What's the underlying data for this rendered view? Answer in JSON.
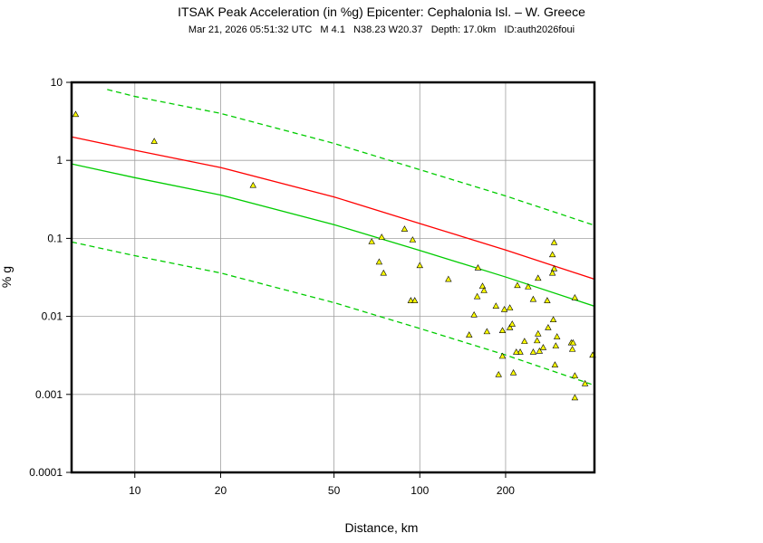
{
  "chart_data": {
    "type": "scatter",
    "title": "ITSAK Peak Acceleration (in %g) Epicenter: Cephalonia Isl. – W. Greece",
    "subtitle": "Mar 21, 2026 05:51:32 UTC   M 4.1   N38.23 W20.37   Depth: 17.0km   ID:auth2026foui",
    "x_label": "Distance, km",
    "y_label": "% g",
    "xscale": "log",
    "yscale": "log",
    "grid": true,
    "xlim": [
      6,
      410
    ],
    "ylim": [
      0.0001,
      10
    ],
    "xticks": [
      10,
      20,
      50,
      100,
      200
    ],
    "yticks": [
      0.0001,
      0.001,
      0.01,
      0.1,
      1,
      10
    ],
    "marker_color": "#ffff00",
    "x": [
      6.2,
      11.7,
      26,
      67.8,
      73.5,
      72,
      74.6,
      88.4,
      94.4,
      100,
      126,
      93,
      96,
      160,
      166,
      168,
      159,
      155,
      149,
      172,
      185,
      198,
      207,
      207,
      211,
      195,
      220,
      240,
      250,
      260,
      296,
      292,
      296,
      292,
      280,
      294,
      282,
      260,
      258,
      271,
      263,
      250,
      233,
      225,
      218,
      303,
      300,
      298,
      340,
      345,
      343,
      350,
      350,
      350,
      380,
      404,
      195,
      189,
      213
    ],
    "values": [
      3.9,
      1.76,
      0.48,
      0.091,
      0.104,
      0.05,
      0.036,
      0.132,
      0.096,
      0.045,
      0.03,
      0.016,
      0.016,
      0.042,
      0.0245,
      0.0215,
      0.018,
      0.0105,
      0.0058,
      0.0064,
      0.0136,
      0.0123,
      0.0129,
      0.0072,
      0.008,
      0.0066,
      0.025,
      0.024,
      0.0166,
      0.031,
      0.089,
      0.062,
      0.041,
      0.036,
      0.016,
      0.0091,
      0.0072,
      0.006,
      0.0049,
      0.004,
      0.0036,
      0.0035,
      0.0048,
      0.0035,
      0.0035,
      0.0055,
      0.0042,
      0.0024,
      0.0046,
      0.0046,
      0.0038,
      0.0174,
      0.00174,
      0.00091,
      0.00138,
      0.0032,
      0.0031,
      0.0018,
      0.0019
    ],
    "lines": [
      {
        "color": "#ff0000",
        "dashed": false,
        "x": [
          6,
          10,
          20,
          50,
          100,
          200,
          410
        ],
        "values": [
          2.0,
          1.35,
          0.81,
          0.34,
          0.155,
          0.071,
          0.03
        ]
      },
      {
        "color": "#00cc00",
        "dashed": false,
        "x": [
          6,
          10,
          20,
          50,
          100,
          200,
          410
        ],
        "values": [
          0.9,
          0.6,
          0.36,
          0.15,
          0.07,
          0.032,
          0.0135
        ]
      },
      {
        "color": "#00cc00",
        "dashed": true,
        "x": [
          8,
          10,
          20,
          50,
          100,
          200,
          410
        ],
        "values": [
          8.1,
          6.6,
          4.0,
          1.65,
          0.76,
          0.35,
          0.147
        ]
      },
      {
        "color": "#00cc00",
        "dashed": true,
        "x": [
          6,
          10,
          20,
          50,
          100,
          200,
          400
        ],
        "values": [
          0.09,
          0.06,
          0.036,
          0.015,
          0.007,
          0.0032,
          0.00135
        ]
      }
    ]
  }
}
